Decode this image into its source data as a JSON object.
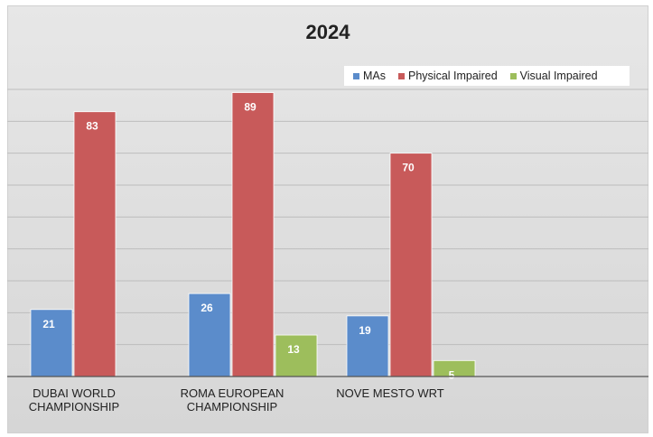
{
  "chart_data": {
    "type": "bar",
    "title": "2024",
    "xlabel": "",
    "ylabel": "",
    "ylim": [
      0,
      90
    ],
    "grid": true,
    "legend_position": "top-right",
    "categories": [
      "DUBAI WORLD CHAMPIONSHIP",
      "ROMA EUROPEAN CHAMPIONSHIP",
      "NOVE MESTO WRT"
    ],
    "category_lines": [
      [
        "DUBAI WORLD",
        "CHAMPIONSHIP"
      ],
      [
        "ROMA EUROPEAN",
        "CHAMPIONSHIP"
      ],
      [
        "NOVE MESTO WRT"
      ]
    ],
    "series": [
      {
        "name": "MAs",
        "color": "#5b8ccb",
        "values": [
          21,
          26,
          19
        ]
      },
      {
        "name": "Physical Impaired",
        "color": "#c85a5a",
        "values": [
          83,
          89,
          70
        ]
      },
      {
        "name": "Visual Impaired",
        "color": "#9dbe5c",
        "values": [
          null,
          13,
          5
        ]
      }
    ]
  }
}
